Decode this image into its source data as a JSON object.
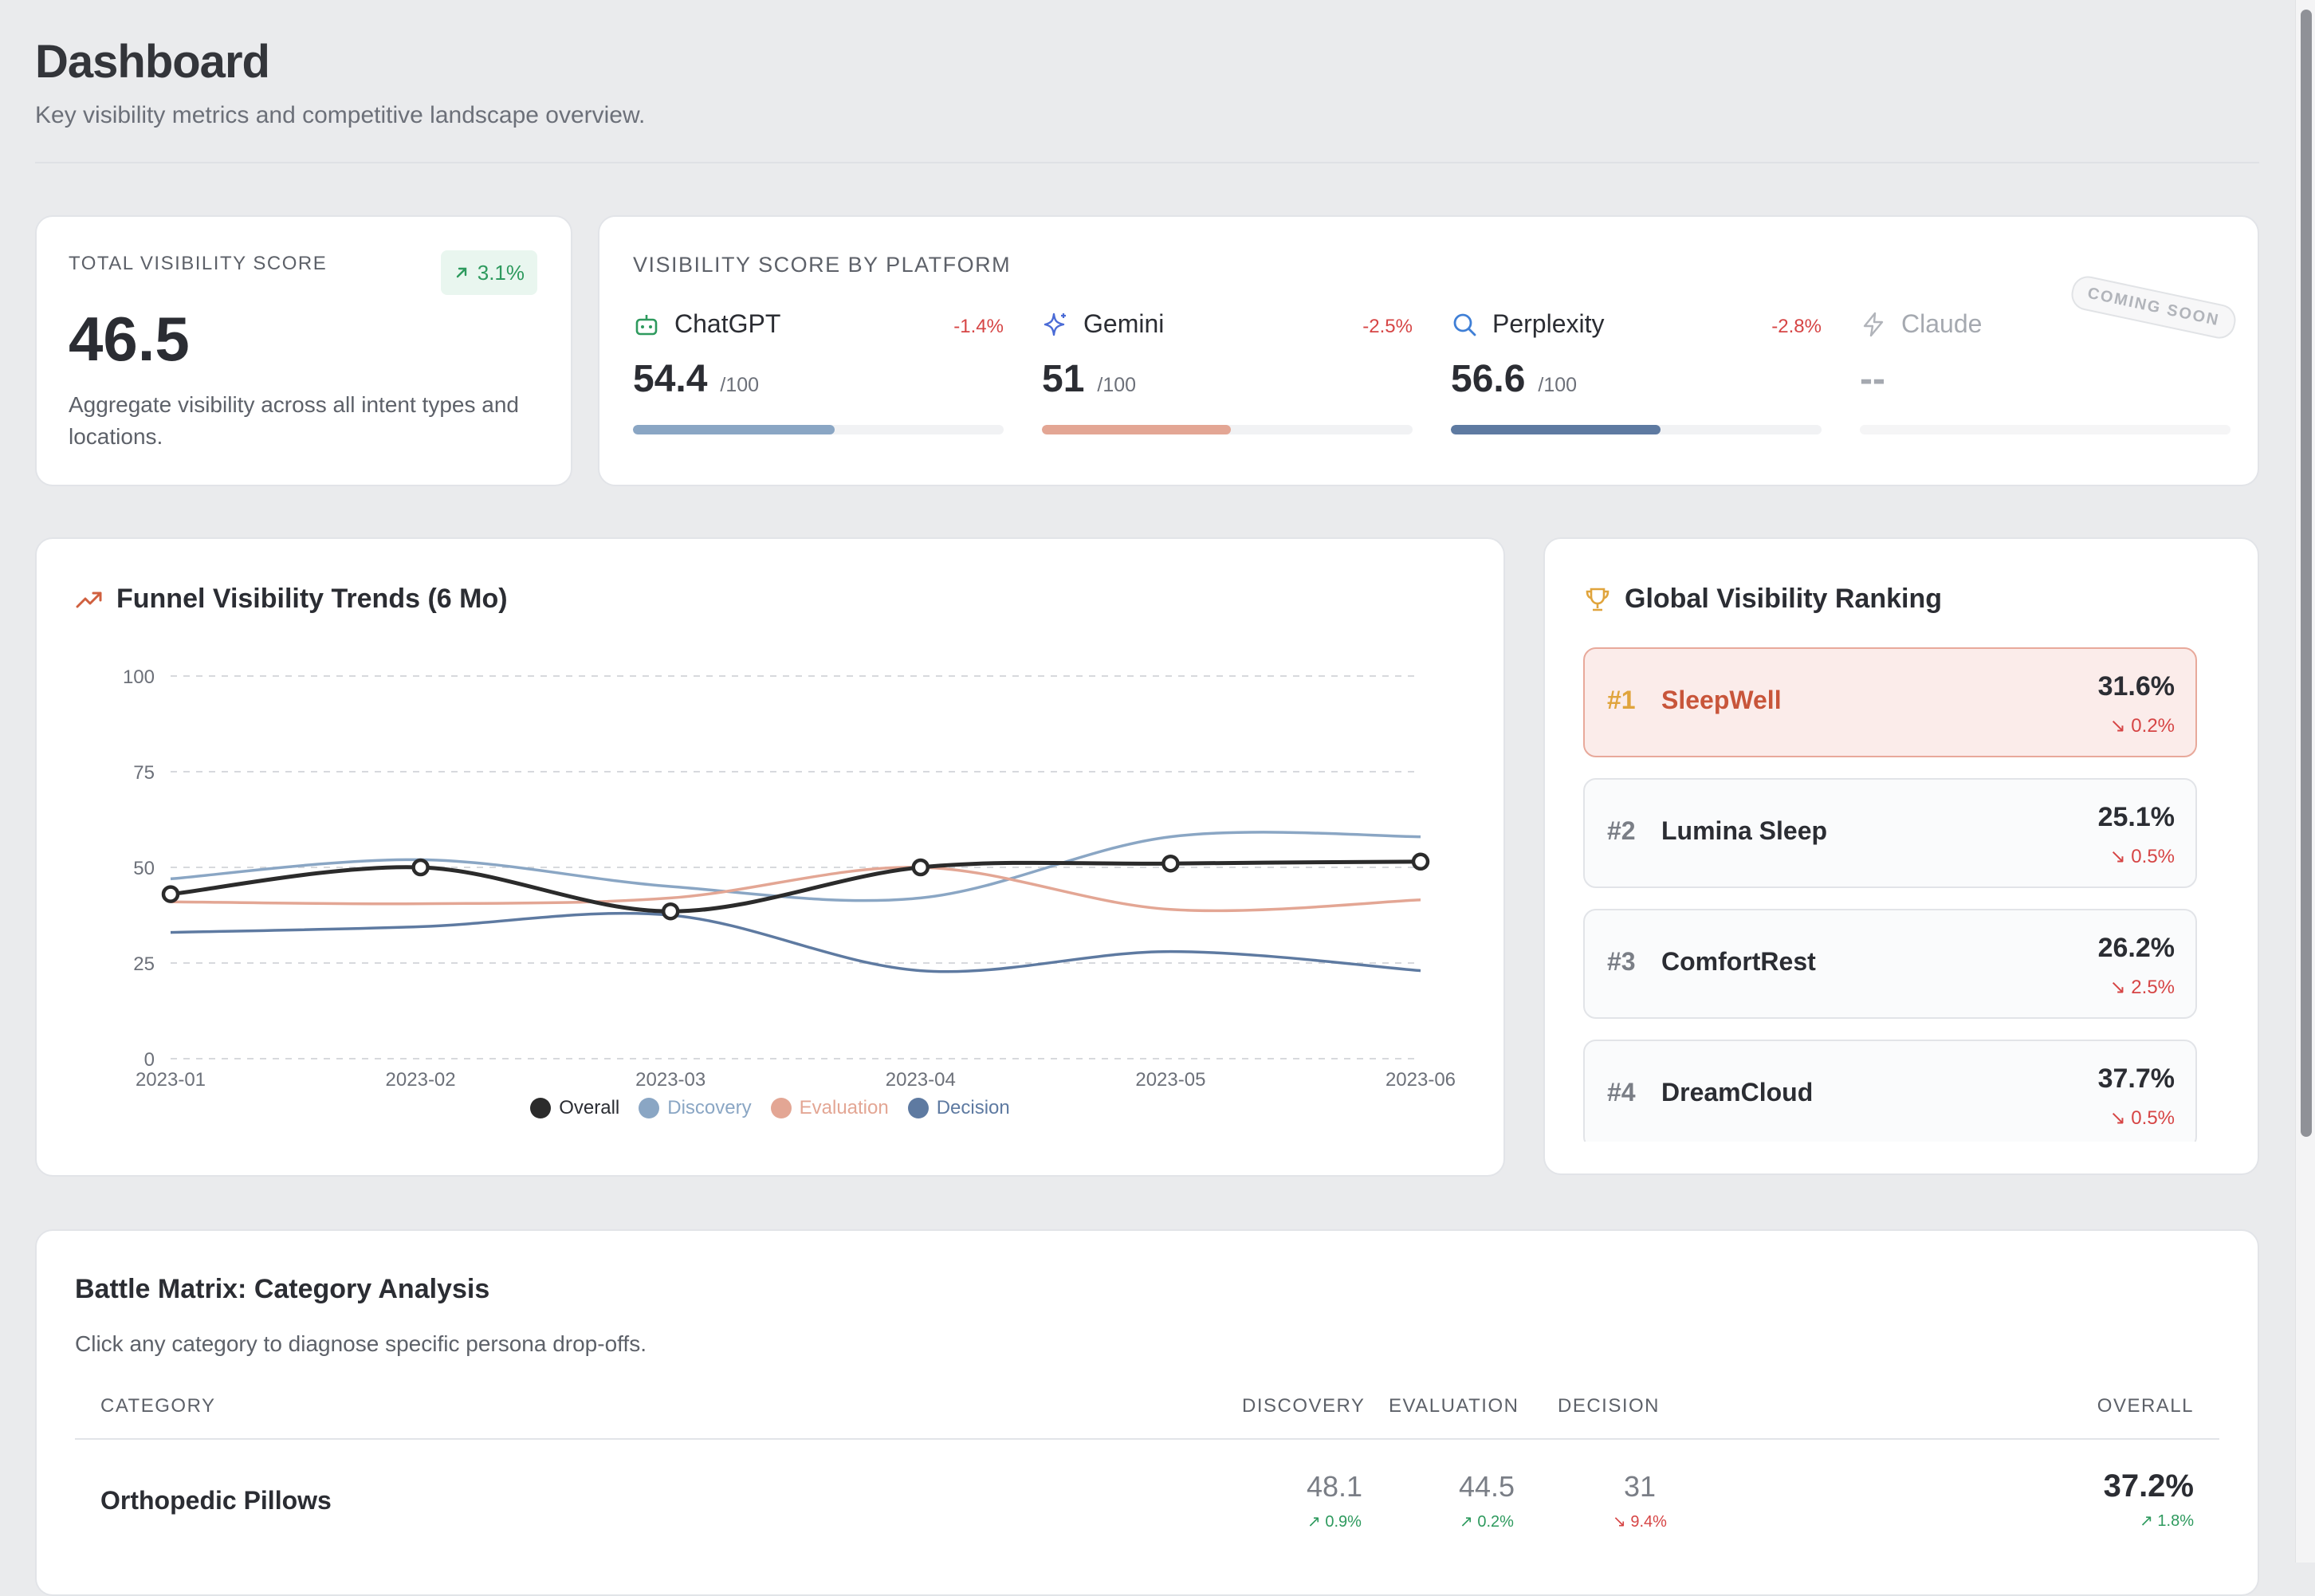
{
  "header": {
    "title": "Dashboard",
    "subtitle": "Key visibility metrics and competitive landscape overview."
  },
  "total": {
    "label": "TOTAL VISIBILITY SCORE",
    "change": "3.1%",
    "score": "46.5",
    "description": "Aggregate visibility across all intent types and locations."
  },
  "platforms": {
    "label": "VISIBILITY SCORE BY PLATFORM",
    "items": [
      {
        "name": "ChatGPT",
        "change": "-1.4%",
        "score": "54.4",
        "denominator": "/100",
        "fill": 0.544,
        "color": "#8aa6c4",
        "icon": "robot-icon"
      },
      {
        "name": "Gemini",
        "change": "-2.5%",
        "score": "51",
        "denominator": "/100",
        "fill": 0.51,
        "color": "#e3a694",
        "icon": "sparkle-icon"
      },
      {
        "name": "Perplexity",
        "change": "-2.8%",
        "score": "56.6",
        "denominator": "/100",
        "fill": 0.566,
        "color": "#5e7aa1",
        "icon": "search-icon"
      },
      {
        "name": "Claude",
        "score": "--",
        "badge": "COMING SOON",
        "icon": "bolt-icon"
      }
    ]
  },
  "trend": {
    "title": "Funnel Visibility Trends (6 Mo)",
    "icon": "trending-up-icon"
  },
  "chart_data": {
    "type": "line",
    "x": [
      "2023-01",
      "2023-02",
      "2023-03",
      "2023-04",
      "2023-05",
      "2023-06"
    ],
    "ylim": [
      0,
      100
    ],
    "yticks": [
      0,
      25,
      50,
      75,
      100
    ],
    "grid": true,
    "legend_position": "bottom",
    "series": [
      {
        "name": "Overall",
        "values": [
          43,
          50,
          38.5,
          50,
          51,
          51.5
        ],
        "color": "#2b2b2b",
        "markers": true
      },
      {
        "name": "Discovery",
        "values": [
          47,
          52,
          45,
          42,
          58,
          58
        ],
        "color": "#8aa6c4",
        "markers": false
      },
      {
        "name": "Evaluation",
        "values": [
          41,
          40.5,
          42,
          50,
          39,
          41.5
        ],
        "color": "#e3a694",
        "markers": false
      },
      {
        "name": "Decision",
        "values": [
          33,
          34.5,
          37.5,
          23,
          28,
          23
        ],
        "color": "#5e7aa1",
        "markers": false
      }
    ]
  },
  "ranking": {
    "title": "Global Visibility Ranking",
    "icon": "trophy-icon",
    "items": [
      {
        "rank": "#1",
        "name": "SleepWell",
        "pct": "31.6%",
        "change": "0.2%"
      },
      {
        "rank": "#2",
        "name": "Lumina Sleep",
        "pct": "25.1%",
        "change": "0.5%"
      },
      {
        "rank": "#3",
        "name": "ComfortRest",
        "pct": "26.2%",
        "change": "2.5%"
      },
      {
        "rank": "#4",
        "name": "DreamCloud",
        "pct": "37.7%",
        "change": "0.5%"
      }
    ]
  },
  "battle": {
    "title": "Battle Matrix: Category Analysis",
    "subtitle": "Click any category to diagnose specific persona drop-offs.",
    "headers": {
      "category": "CATEGORY",
      "discovery": "DISCOVERY",
      "evaluation": "EVALUATION",
      "decision": "DECISION",
      "overall": "OVERALL"
    },
    "rows": [
      {
        "category": "Orthopedic Pillows",
        "discovery": "48.1",
        "discovery_change": "0.9%",
        "evaluation": "44.5",
        "evaluation_change": "0.2%",
        "decision": "31",
        "decision_change": "9.4%",
        "overall": "37.2%",
        "overall_change": "1.8%"
      }
    ]
  }
}
